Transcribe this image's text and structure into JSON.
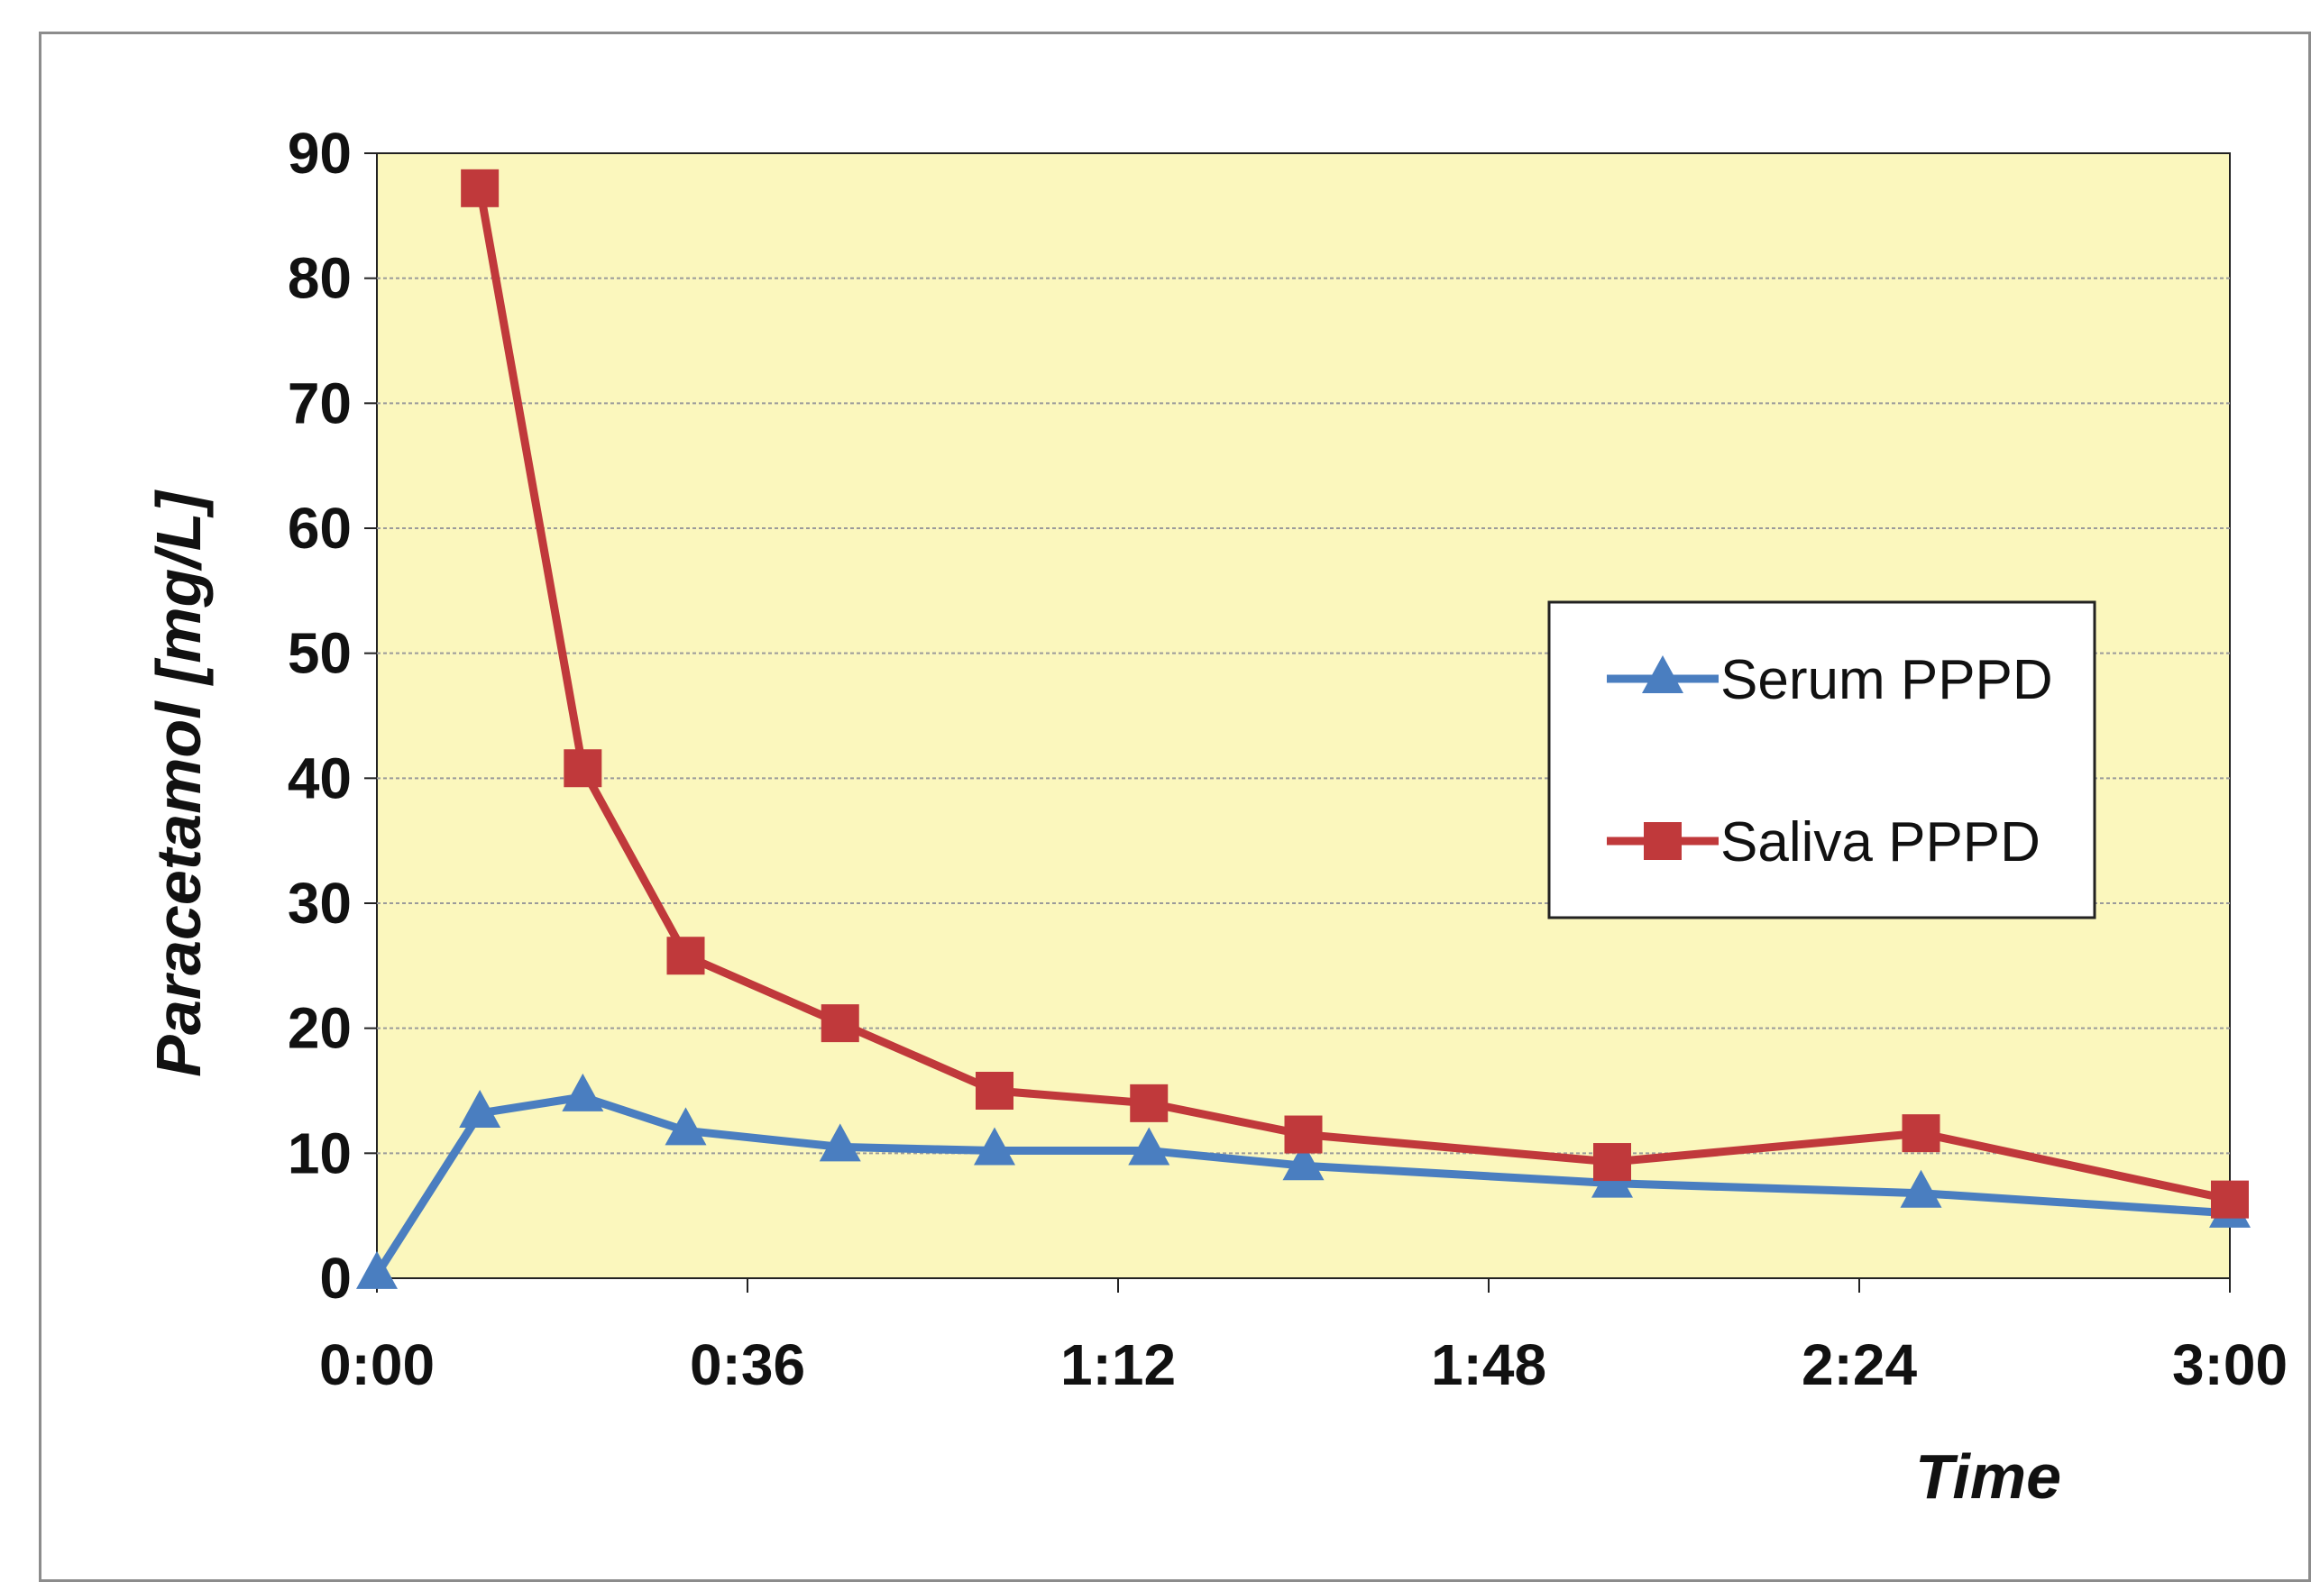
{
  "chart_data": {
    "type": "line",
    "ylabel": "Paracetamol  [mg/L]",
    "xlabel": "Time",
    "ylim": [
      0,
      90
    ],
    "yticks": [
      "0",
      "10",
      "20",
      "30",
      "40",
      "50",
      "60",
      "70",
      "80",
      "90"
    ],
    "xlim": [
      "0:00",
      "3:00"
    ],
    "xticks": [
      "0:00",
      "0:36",
      "1:12",
      "1:48",
      "2:24",
      "3:00"
    ],
    "grid": true,
    "legend_position": "right",
    "plot_background": "#fbf7bd",
    "series": [
      {
        "name": "Serum PPPD",
        "color": "#4a7ec0",
        "marker": "triangle",
        "points": [
          {
            "x": "0:00",
            "y": 0.3
          },
          {
            "x": "0:10",
            "y": 13.2
          },
          {
            "x": "0:20",
            "y": 14.5
          },
          {
            "x": "0:30",
            "y": 11.8
          },
          {
            "x": "0:45",
            "y": 10.5
          },
          {
            "x": "1:00",
            "y": 10.2
          },
          {
            "x": "1:15",
            "y": 10.2
          },
          {
            "x": "1:30",
            "y": 9.0
          },
          {
            "x": "2:00",
            "y": 7.6
          },
          {
            "x": "2:30",
            "y": 6.8
          },
          {
            "x": "3:00",
            "y": 5.2
          }
        ]
      },
      {
        "name": "Saliva PPPD",
        "color": "#c0393b",
        "marker": "square",
        "points": [
          {
            "x": "0:10",
            "y": 87.2
          },
          {
            "x": "0:20",
            "y": 40.8
          },
          {
            "x": "0:30",
            "y": 25.8
          },
          {
            "x": "0:45",
            "y": 20.4
          },
          {
            "x": "1:00",
            "y": 15.0
          },
          {
            "x": "1:15",
            "y": 14.0
          },
          {
            "x": "1:30",
            "y": 11.5
          },
          {
            "x": "2:00",
            "y": 9.3
          },
          {
            "x": "2:30",
            "y": 11.6
          },
          {
            "x": "3:00",
            "y": 6.3
          }
        ]
      }
    ]
  }
}
